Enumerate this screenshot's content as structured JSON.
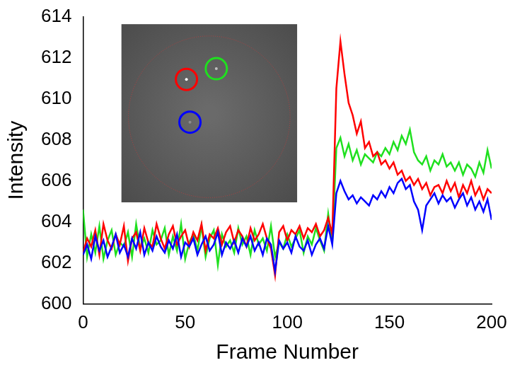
{
  "chart_data": {
    "type": "line",
    "x_label": "Frame Number",
    "y_label": "Intensity",
    "x": [
      0,
      2,
      4,
      6,
      8,
      10,
      12,
      14,
      16,
      18,
      20,
      22,
      24,
      26,
      28,
      30,
      32,
      34,
      36,
      38,
      40,
      42,
      44,
      46,
      48,
      50,
      52,
      54,
      56,
      58,
      60,
      62,
      64,
      66,
      68,
      70,
      72,
      74,
      76,
      78,
      80,
      82,
      84,
      86,
      88,
      90,
      92,
      94,
      96,
      98,
      100,
      102,
      104,
      106,
      108,
      110,
      112,
      114,
      116,
      118,
      120,
      122,
      124,
      126,
      128,
      130,
      132,
      134,
      136,
      138,
      140,
      142,
      144,
      146,
      148,
      150,
      152,
      154,
      156,
      158,
      160,
      162,
      164,
      166,
      168,
      170,
      172,
      174,
      176,
      178,
      180,
      182,
      184,
      186,
      188,
      190,
      192,
      194,
      196,
      198,
      200
    ],
    "series": [
      {
        "color": "#0000ff",
        "values": [
          602.4,
          602.9,
          602.2,
          603.3,
          602.6,
          603.1,
          602.3,
          602.8,
          603.4,
          602.5,
          602.9,
          602.3,
          603.2,
          602.7,
          603.5,
          602.4,
          603.0,
          602.6,
          603.3,
          602.8,
          602.5,
          603.1,
          602.7,
          603.4,
          602.3,
          603.0,
          602.8,
          603.2,
          602.4,
          602.9,
          603.3,
          602.6,
          602.9,
          603.5,
          602.4,
          603.0,
          602.7,
          603.1,
          602.5,
          603.2,
          602.8,
          603.3,
          602.6,
          603.0,
          602.4,
          603.2,
          602.9,
          601.6,
          603.1,
          602.7,
          603.0,
          602.5,
          603.3,
          602.8,
          602.6,
          603.1,
          602.4,
          602.9,
          603.2,
          602.7,
          603.8,
          602.9,
          605.4,
          606.0,
          605.5,
          605.1,
          605.3,
          604.9,
          605.2,
          605.0,
          604.8,
          605.3,
          605.1,
          605.5,
          605.2,
          605.7,
          605.4,
          605.9,
          606.1,
          605.6,
          605.8,
          605.0,
          604.6,
          603.6,
          604.8,
          605.1,
          605.4,
          604.9,
          605.3,
          605.0,
          605.2,
          604.7,
          605.1,
          605.4,
          604.8,
          605.2,
          604.6,
          605.0,
          604.5,
          605.1,
          604.1
        ]
      },
      {
        "color": "#ff0000",
        "values": [
          602.5,
          603.2,
          602.8,
          603.6,
          602.4,
          603.9,
          603.1,
          602.7,
          603.4,
          602.9,
          603.8,
          602.1,
          603.2,
          603.5,
          602.6,
          603.7,
          603.0,
          602.8,
          603.9,
          603.2,
          602.7,
          603.4,
          603.8,
          602.9,
          603.3,
          603.6,
          602.8,
          603.5,
          603.1,
          603.9,
          602.6,
          603.4,
          603.2,
          603.7,
          602.9,
          603.5,
          603.8,
          603.0,
          603.6,
          603.3,
          602.8,
          603.7,
          603.1,
          603.4,
          603.9,
          603.2,
          602.7,
          601.4,
          603.5,
          603.8,
          603.1,
          603.6,
          603.4,
          603.8,
          603.2,
          603.7,
          603.5,
          603.9,
          603.3,
          603.6,
          604.2,
          603.4,
          610.5,
          612.8,
          611.2,
          609.8,
          609.2,
          608.3,
          608.9,
          607.6,
          607.9,
          607.2,
          607.4,
          606.8,
          607.0,
          606.6,
          606.9,
          606.3,
          606.5,
          606.0,
          606.2,
          605.8,
          606.1,
          605.6,
          605.9,
          605.3,
          605.7,
          605.8,
          605.4,
          606.0,
          605.5,
          605.9,
          605.2,
          605.8,
          605.4,
          606.0,
          605.3,
          605.7,
          605.1,
          605.6,
          605.4
        ]
      },
      {
        "color": "#1fe01f",
        "values": [
          604.6,
          602.3,
          603.4,
          602.5,
          603.8,
          602.2,
          603.1,
          603.6,
          602.4,
          603.0,
          602.8,
          603.5,
          602.3,
          603.9,
          602.7,
          603.2,
          602.5,
          603.6,
          602.9,
          603.1,
          603.7,
          602.4,
          603.3,
          602.6,
          603.9,
          602.2,
          603.0,
          603.4,
          602.6,
          603.8,
          602.3,
          603.2,
          603.6,
          601.9,
          603.4,
          602.8,
          603.1,
          602.5,
          603.7,
          602.9,
          603.3,
          602.4,
          603.6,
          602.9,
          603.2,
          602.6,
          603.8,
          602.3,
          603.0,
          602.7,
          603.4,
          602.8,
          603.2,
          603.6,
          602.5,
          603.3,
          602.9,
          603.7,
          603.1,
          602.6,
          604.4,
          603.0,
          607.6,
          608.1,
          607.2,
          607.8,
          607.0,
          607.5,
          606.8,
          607.3,
          607.1,
          606.9,
          607.4,
          607.2,
          607.6,
          607.3,
          607.9,
          607.5,
          608.2,
          607.8,
          608.5,
          607.4,
          607.0,
          606.8,
          607.2,
          606.5,
          607.0,
          606.8,
          607.3,
          606.7,
          606.9,
          606.5,
          606.9,
          606.3,
          606.8,
          606.6,
          606.2,
          606.9,
          606.4,
          607.5,
          606.6
        ]
      }
    ],
    "xlim": [
      0,
      200
    ],
    "xticks": [
      0,
      50,
      100,
      150,
      200
    ],
    "ylim": [
      600,
      614
    ],
    "yticks": [
      600,
      602,
      604,
      606,
      608,
      610,
      612,
      614
    ],
    "grid": false
  }
}
